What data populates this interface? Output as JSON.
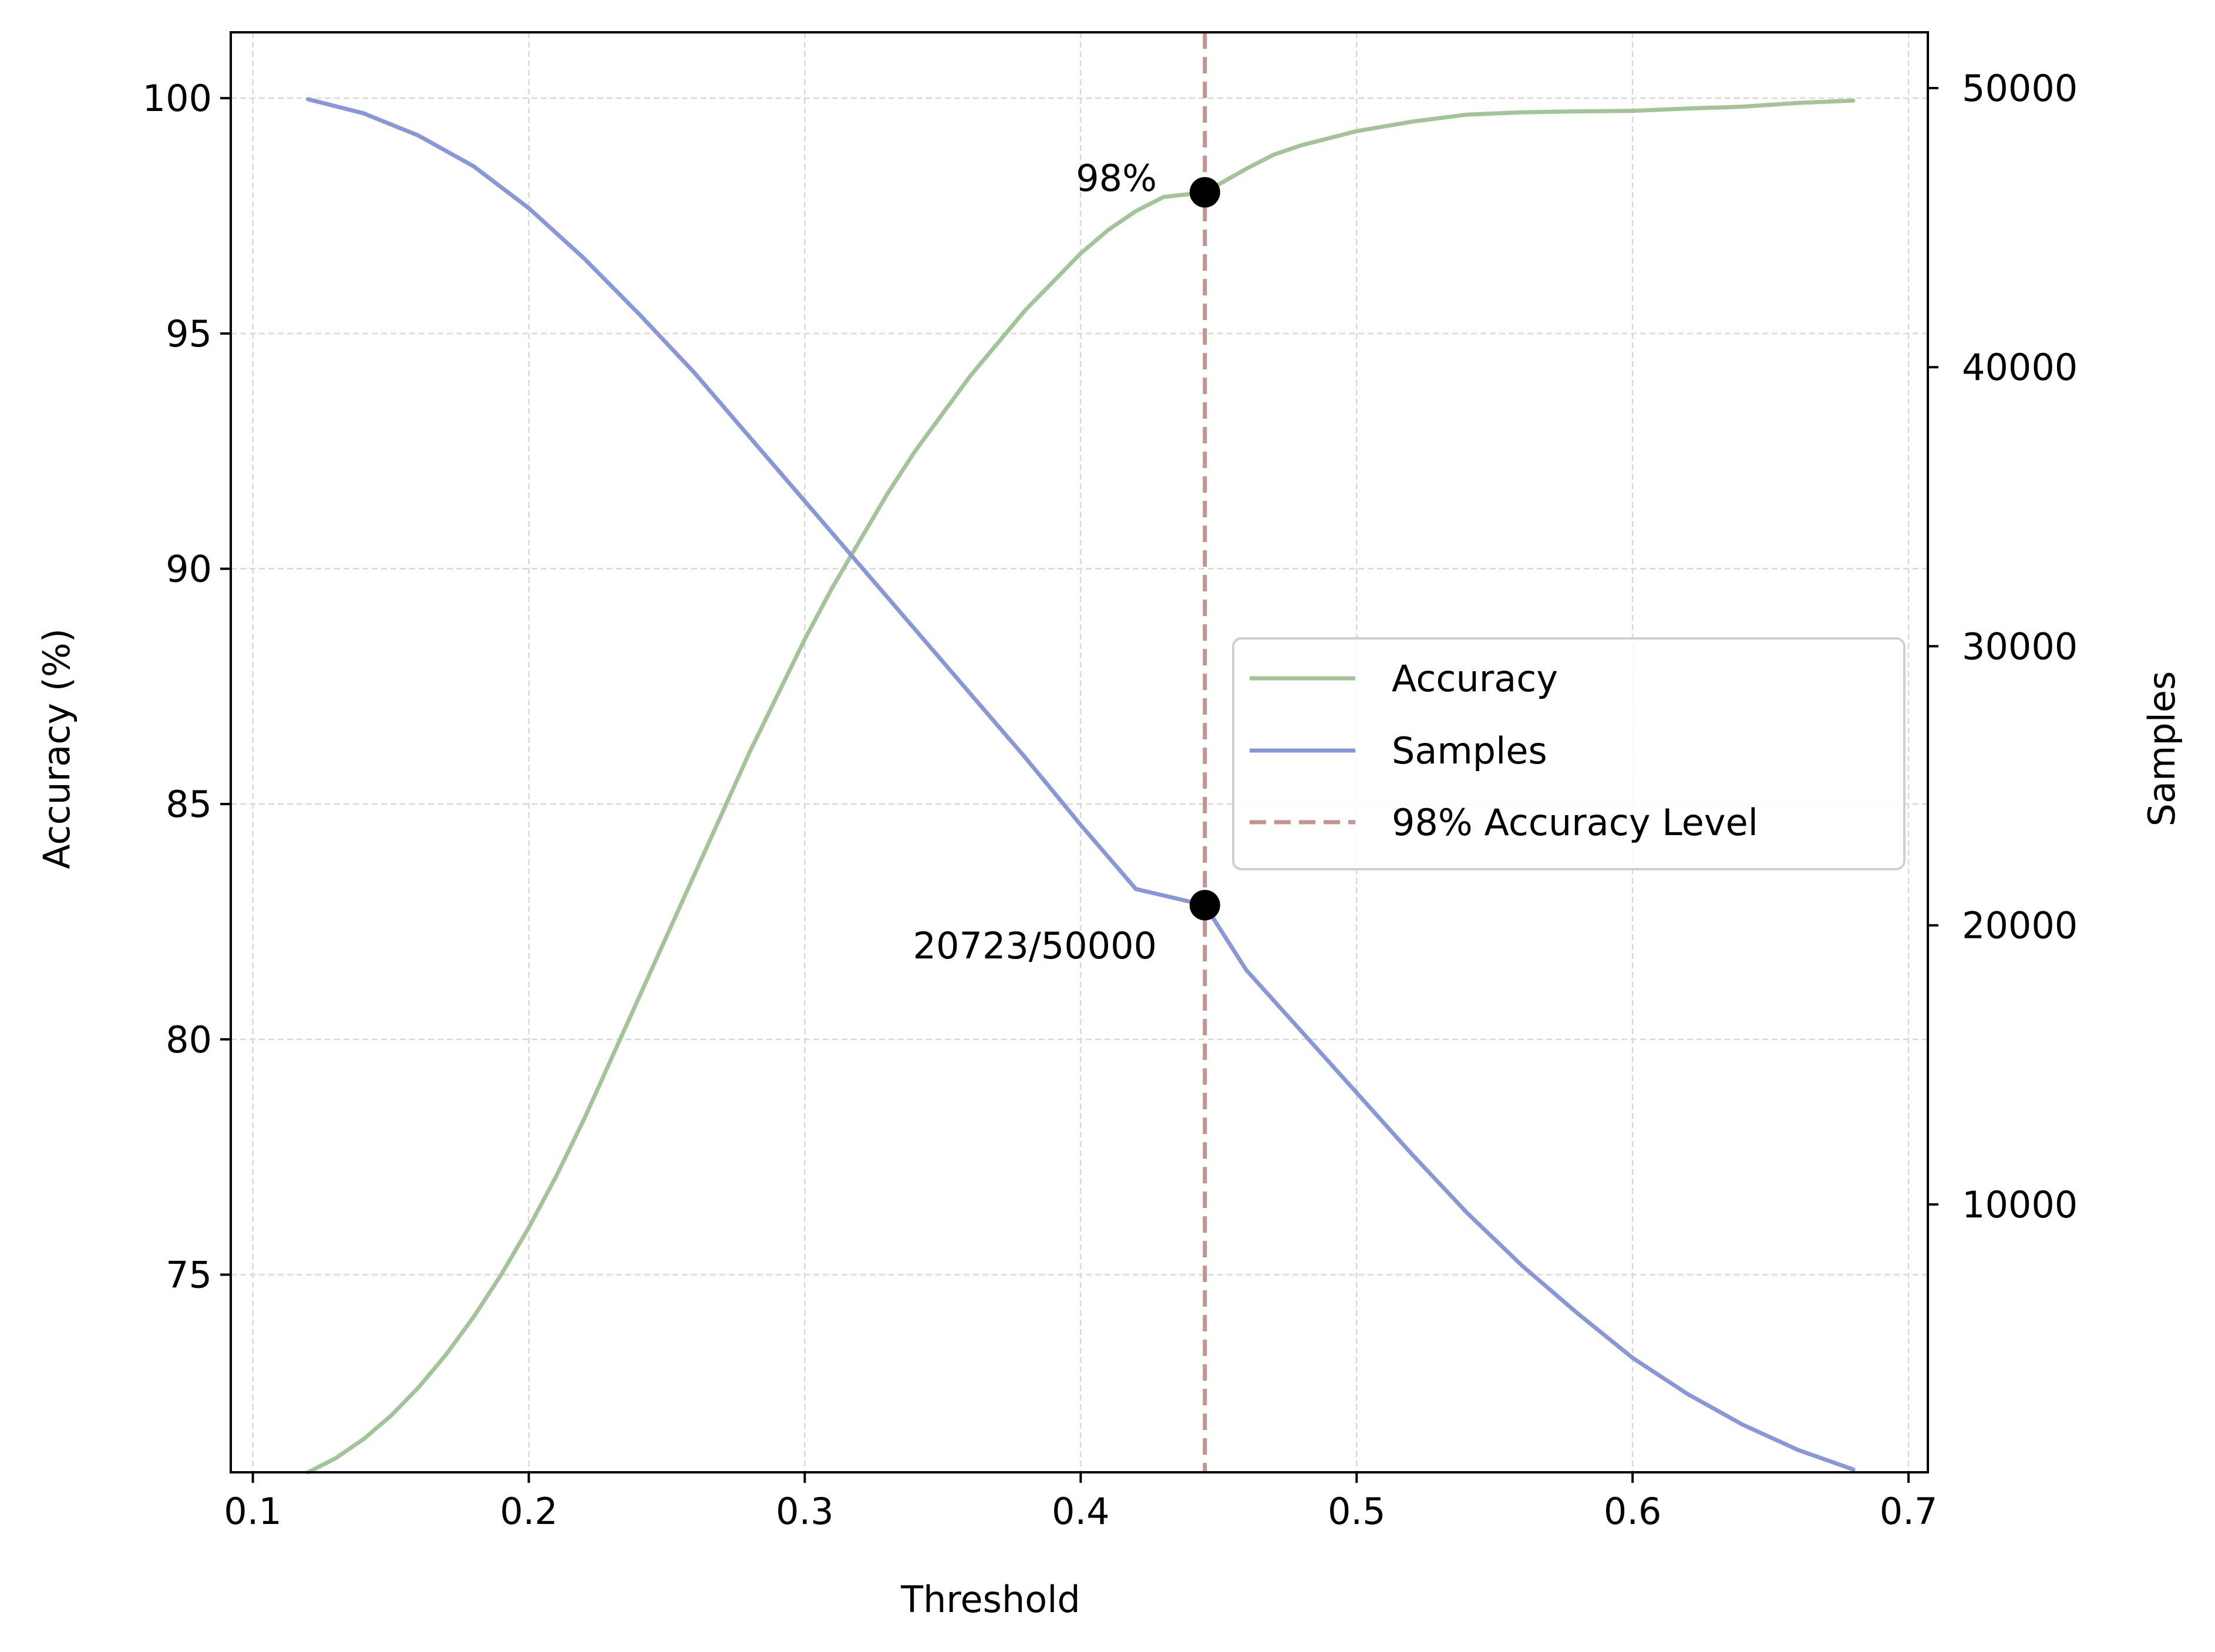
{
  "chart_data": {
    "type": "line",
    "xlabel": "Threshold",
    "ylabel": "Accuracy (%)",
    "y2label": "Samples",
    "xlim": [
      0.092,
      0.707
    ],
    "ylim": [
      70.8,
      101.4
    ],
    "y2lim": [
      400,
      52000
    ],
    "x_ticks": [
      0.1,
      0.2,
      0.3,
      0.4,
      0.5,
      0.6,
      0.7
    ],
    "x_tick_labels": [
      "0.1",
      "0.2",
      "0.3",
      "0.4",
      "0.5",
      "0.6",
      "0.7"
    ],
    "y_ticks": [
      75,
      80,
      85,
      90,
      95,
      100
    ],
    "y_tick_labels": [
      "75",
      "80",
      "85",
      "90",
      "95",
      "100"
    ],
    "y2_ticks": [
      10000,
      20000,
      30000,
      40000,
      50000
    ],
    "y2_tick_labels": [
      "10000",
      "20000",
      "30000",
      "40000",
      "50000"
    ],
    "grid": true,
    "legend_position": "center-right",
    "series": [
      {
        "name": "Accuracy",
        "axis": "left",
        "color": "#a3c499",
        "x": [
          0.12,
          0.13,
          0.14,
          0.15,
          0.16,
          0.17,
          0.18,
          0.19,
          0.2,
          0.21,
          0.22,
          0.23,
          0.24,
          0.25,
          0.26,
          0.27,
          0.28,
          0.29,
          0.3,
          0.31,
          0.32,
          0.33,
          0.34,
          0.35,
          0.36,
          0.37,
          0.38,
          0.39,
          0.4,
          0.41,
          0.42,
          0.43,
          0.445,
          0.46,
          0.47,
          0.48,
          0.5,
          0.52,
          0.54,
          0.56,
          0.58,
          0.6,
          0.62,
          0.64,
          0.66,
          0.68
        ],
        "y": [
          70.8,
          71.1,
          71.5,
          72.0,
          72.6,
          73.3,
          74.1,
          75.0,
          76.0,
          77.1,
          78.3,
          79.6,
          80.9,
          82.2,
          83.5,
          84.8,
          86.1,
          87.3,
          88.5,
          89.6,
          90.6,
          91.6,
          92.5,
          93.3,
          94.1,
          94.8,
          95.5,
          96.1,
          96.7,
          97.2,
          97.6,
          97.9,
          98.0,
          98.5,
          98.8,
          99.0,
          99.3,
          99.5,
          99.65,
          99.7,
          99.72,
          99.73,
          99.78,
          99.82,
          99.9,
          99.95
        ]
      },
      {
        "name": "Samples",
        "axis": "right",
        "color": "#8797d8",
        "x": [
          0.12,
          0.14,
          0.16,
          0.18,
          0.2,
          0.22,
          0.24,
          0.26,
          0.28,
          0.3,
          0.32,
          0.34,
          0.36,
          0.38,
          0.4,
          0.42,
          0.445,
          0.46,
          0.48,
          0.5,
          0.52,
          0.54,
          0.56,
          0.58,
          0.6,
          0.62,
          0.64,
          0.66,
          0.68
        ],
        "y": [
          49600,
          49100,
          48300,
          47200,
          45700,
          43900,
          41900,
          39800,
          37500,
          35200,
          32900,
          30600,
          28300,
          26000,
          23600,
          21300,
          20723,
          18400,
          16200,
          14000,
          11800,
          9700,
          7800,
          6100,
          4500,
          3200,
          2100,
          1200,
          500
        ]
      }
    ],
    "reference_line": {
      "name": "98% Accuracy Level",
      "x": 0.445,
      "color": "#c4958c",
      "style": "dashed"
    },
    "annotations": [
      {
        "label": "98%",
        "x": 0.445,
        "y": 98.0,
        "axis": "left"
      },
      {
        "label": "20723/50000",
        "x": 0.445,
        "y": 20723,
        "axis": "right"
      }
    ],
    "legend": [
      "Accuracy",
      "Samples",
      "98% Accuracy Level"
    ]
  }
}
